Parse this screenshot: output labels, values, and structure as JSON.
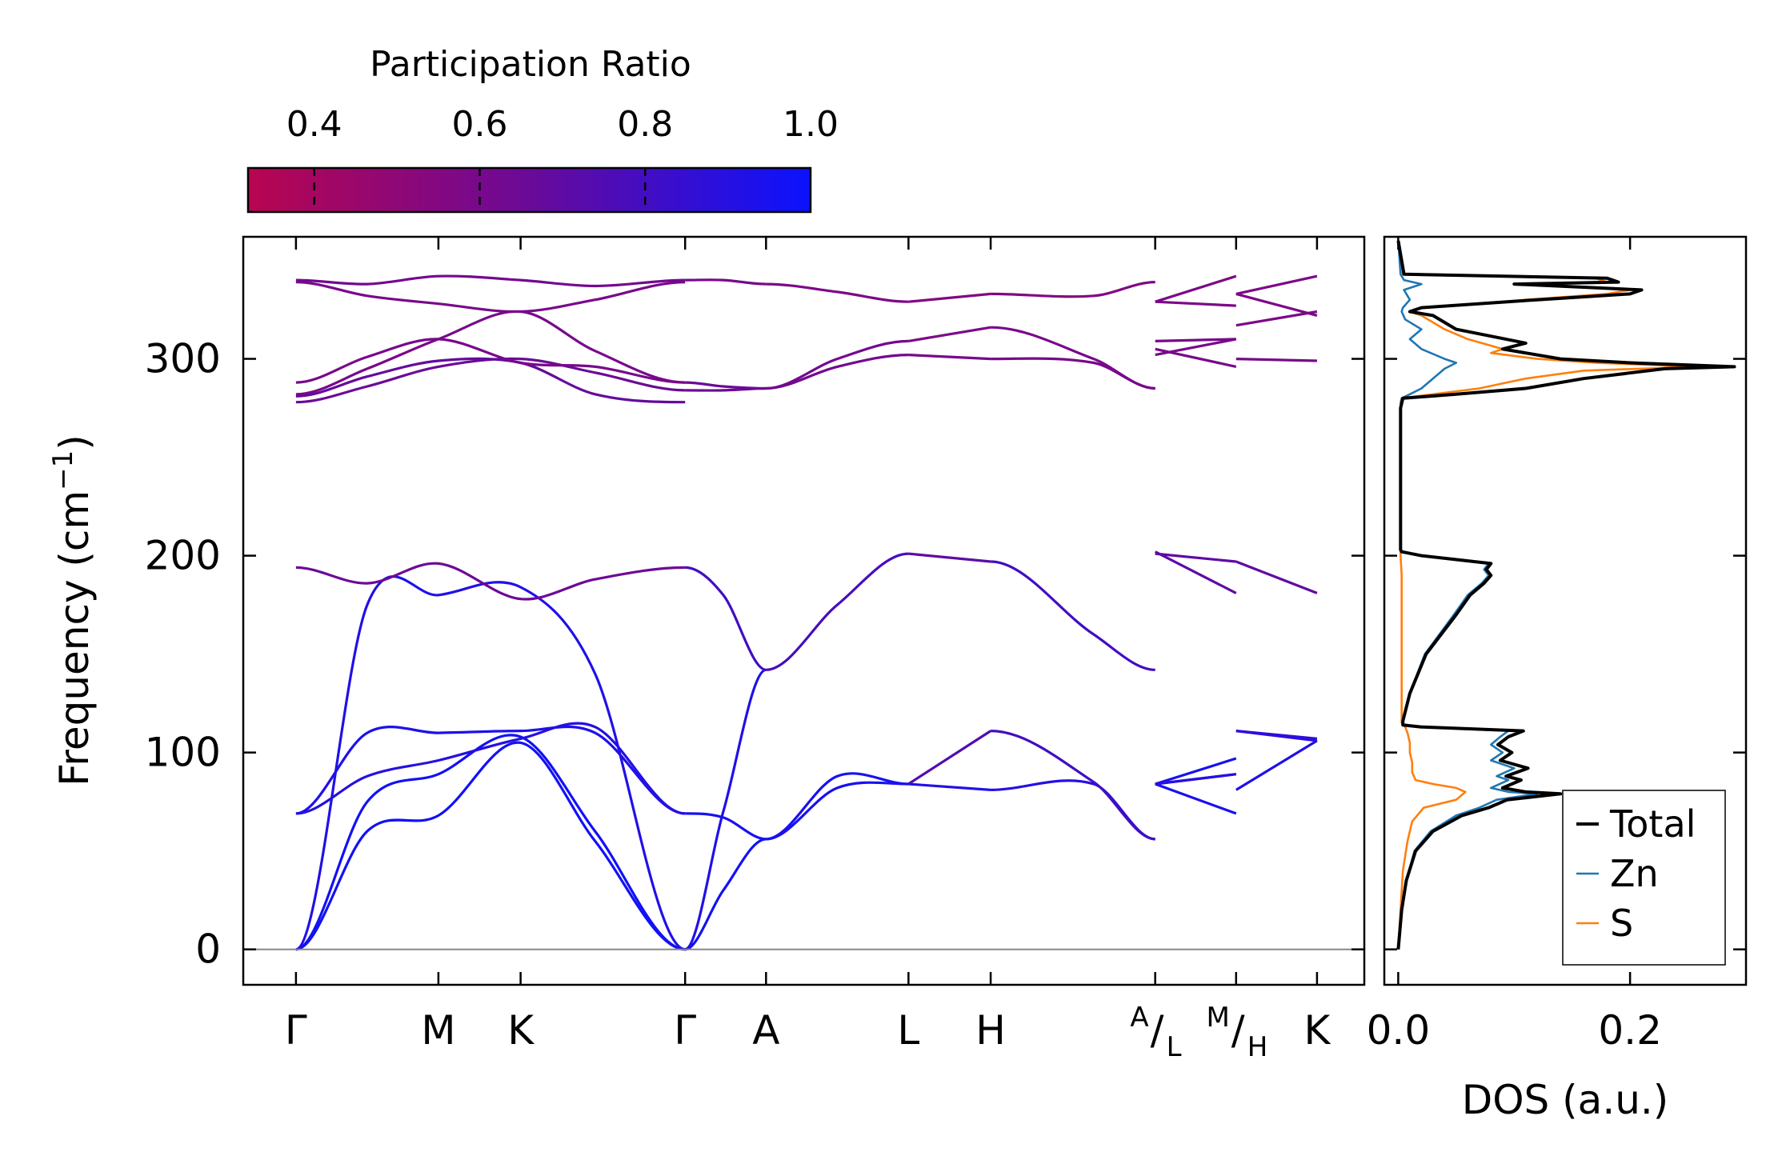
{
  "chart_data": {
    "type": "line",
    "title": "",
    "band_structure": {
      "ylabel": "Frequency (cm",
      "ylabel_sup": "−1",
      "ylabel_close": ")",
      "ylim": [
        -18,
        362
      ],
      "yticks": [
        0,
        100,
        200,
        300
      ],
      "ytick_labels": [
        "0",
        "100",
        "200",
        "300"
      ],
      "kpath": [
        {
          "label": "Γ",
          "x": 0
        },
        {
          "label": "M",
          "x": 1.0
        },
        {
          "label": "K",
          "x": 1.577
        },
        {
          "label": "Γ",
          "x": 2.732
        },
        {
          "label": "A",
          "x": 3.3
        },
        {
          "label": "L",
          "x": 4.3
        },
        {
          "label": "H",
          "x": 4.877
        },
        {
          "label": "",
          "x": 6.032
        },
        {
          "label": "",
          "x": 6.6
        },
        {
          "label": "K",
          "x": 7.168
        }
      ],
      "combined_labels": [
        {
          "sup": "A",
          "base": "L",
          "x": 6.032
        },
        {
          "sup": "M",
          "base": "H",
          "x": 6.6
        }
      ],
      "xlim": [
        -0.37,
        7.5
      ],
      "segments": [
        {
          "x": [
            0,
            0.5,
            1.0,
            1.577,
            2.1,
            2.732
          ],
          "bands": [
            {
              "y": [
                0,
                60,
                68,
                105,
                55,
                0
              ],
              "pr": 0.97
            },
            {
              "y": [
                0,
                75,
                89,
                108,
                60,
                0
              ],
              "pr": 0.97
            },
            {
              "y": [
                69,
                110,
                110,
                111,
                110,
                69
              ],
              "pr": 0.93
            },
            {
              "y": [
                69,
                88,
                96,
                107,
                113,
                69
              ],
              "pr": 0.9
            },
            {
              "y": [
                0,
                175,
                180,
                184,
                140,
                0
              ],
              "pr": 0.92
            },
            {
              "y": [
                194,
                186,
                196,
                178,
                188,
                194
              ],
              "pr": 0.65
            },
            {
              "y": [
                278,
                286,
                296,
                300,
                293,
                284
              ],
              "pr": 0.65
            },
            {
              "y": [
                281,
                291,
                299,
                298,
                282,
                278
              ],
              "pr": 0.68
            },
            {
              "y": [
                282,
                295,
                310,
                324,
                304,
                288
              ],
              "pr": 0.6
            },
            {
              "y": [
                288,
                301,
                310,
                298,
                296,
                288
              ],
              "pr": 0.6
            },
            {
              "y": [
                339,
                332,
                328,
                324,
                330,
                339
              ],
              "pr": 0.6
            },
            {
              "y": [
                340,
                338,
                342,
                340,
                337,
                340
              ],
              "pr": 0.62
            }
          ]
        },
        {
          "x": [
            2.732,
            3.0,
            3.3
          ],
          "bands": [
            {
              "y": [
                0,
                30,
                56
              ],
              "pr": 0.97
            },
            {
              "y": [
                69,
                67,
                56
              ],
              "pr": 0.95
            },
            {
              "y": [
                0,
                70,
                142
              ],
              "pr": 0.92
            },
            {
              "y": [
                194,
                180,
                142
              ],
              "pr": 0.8
            },
            {
              "y": [
                288,
                286,
                285
              ],
              "pr": 0.65
            },
            {
              "y": [
                284,
                284,
                285
              ],
              "pr": 0.65
            },
            {
              "y": [
                340,
                340,
                338
              ],
              "pr": 0.6
            }
          ]
        },
        {
          "x": [
            3.3,
            3.8,
            4.3
          ],
          "bands": [
            {
              "y": [
                56,
                82,
                84
              ],
              "pr": 0.95
            },
            {
              "y": [
                56,
                88,
                84
              ],
              "pr": 0.95
            },
            {
              "y": [
                142,
                175,
                201
              ],
              "pr": 0.78
            },
            {
              "y": [
                285,
                300,
                309
              ],
              "pr": 0.62
            },
            {
              "y": [
                285,
                296,
                302
              ],
              "pr": 0.62
            },
            {
              "y": [
                338,
                334,
                329
              ],
              "pr": 0.58
            }
          ]
        },
        {
          "x": [
            4.3,
            4.877
          ],
          "bands": [
            {
              "y": [
                84,
                81
              ],
              "pr": 0.92
            },
            {
              "y": [
                84,
                111
              ],
              "pr": 0.75
            },
            {
              "y": [
                201,
                197
              ],
              "pr": 0.7
            },
            {
              "y": [
                309,
                316
              ],
              "pr": 0.58
            },
            {
              "y": [
                302,
                300
              ],
              "pr": 0.6
            },
            {
              "y": [
                329,
                333
              ],
              "pr": 0.55
            }
          ]
        },
        {
          "x": [
            4.877,
            5.6,
            6.032
          ],
          "bands": [
            {
              "y": [
                81,
                84,
                56
              ],
              "pr": 0.9
            },
            {
              "y": [
                111,
                85,
                56
              ],
              "pr": 0.8
            },
            {
              "y": [
                197,
                160,
                142
              ],
              "pr": 0.8
            },
            {
              "y": [
                316,
                300,
                285
              ],
              "pr": 0.6
            },
            {
              "y": [
                300,
                298,
                285
              ],
              "pr": 0.6
            },
            {
              "y": [
                333,
                332,
                339
              ],
              "pr": 0.55
            }
          ]
        },
        {
          "x": [
            6.032,
            6.6
          ],
          "bands": [
            {
              "y": [
                84,
                69
              ],
              "pr": 0.95
            },
            {
              "y": [
                84,
                89
              ],
              "pr": 0.95
            },
            {
              "y": [
                84,
                97
              ],
              "pr": 0.95
            },
            {
              "y": [
                84,
                89
              ],
              "pr": 0.9
            },
            {
              "y": [
                202,
                181
              ],
              "pr": 0.7
            },
            {
              "y": [
                201,
                197
              ],
              "pr": 0.7
            },
            {
              "y": [
                305,
                296
              ],
              "pr": 0.6
            },
            {
              "y": [
                309,
                310
              ],
              "pr": 0.6
            },
            {
              "y": [
                302,
                310
              ],
              "pr": 0.6
            },
            {
              "y": [
                329,
                327
              ],
              "pr": 0.58
            },
            {
              "y": [
                329,
                342
              ],
              "pr": 0.58
            }
          ]
        },
        {
          "x": [
            6.6,
            7.168
          ],
          "bands": [
            {
              "y": [
                81,
                106
              ],
              "pr": 0.92
            },
            {
              "y": [
                111,
                106
              ],
              "pr": 0.88
            },
            {
              "y": [
                111,
                107
              ],
              "pr": 0.88
            },
            {
              "y": [
                197,
                181
              ],
              "pr": 0.7
            },
            {
              "y": [
                300,
                299
              ],
              "pr": 0.6
            },
            {
              "y": [
                317,
                324
              ],
              "pr": 0.58
            },
            {
              "y": [
                333,
                322
              ],
              "pr": 0.58
            },
            {
              "y": [
                333,
                342
              ],
              "pr": 0.58
            }
          ]
        }
      ]
    },
    "colorbar": {
      "label": "Participation Ratio",
      "range": [
        0.32,
        1.0
      ],
      "ticks": [
        0.4,
        0.6,
        0.8,
        1.0
      ],
      "tick_labels": [
        "0.4",
        "0.6",
        "0.8",
        "1.0"
      ],
      "color_low": "#b80550",
      "color_mid": "#6a0a98",
      "color_high": "#0a12ff"
    },
    "dos": {
      "xlabel": "DOS (a.u.)",
      "xlim": [
        -0.012,
        0.3
      ],
      "xticks": [
        0.0,
        0.2
      ],
      "xtick_labels": [
        "0.0",
        "0.2"
      ],
      "ylim": [
        -18,
        362
      ],
      "legend": {
        "position": "lower-right",
        "entries": [
          "Total",
          "Zn",
          "S"
        ]
      },
      "series": [
        {
          "name": "Total",
          "color": "#000000",
          "freq": [
            0,
            20,
            35,
            50,
            60,
            68,
            72,
            76,
            79,
            80,
            82,
            86,
            88,
            92,
            96,
            100,
            104,
            108,
            111,
            113,
            114,
            116,
            130,
            150,
            170,
            180,
            186,
            190,
            193,
            196,
            200,
            202,
            203,
            205,
            220,
            250,
            275,
            280,
            282,
            285,
            290,
            295,
            296,
            298,
            300,
            303,
            305,
            308,
            315,
            322,
            324,
            326,
            330,
            333,
            335,
            338,
            339,
            341,
            343,
            360
          ],
          "dos": [
            0,
            0.003,
            0.007,
            0.015,
            0.03,
            0.055,
            0.078,
            0.094,
            0.14,
            0.11,
            0.09,
            0.106,
            0.093,
            0.112,
            0.088,
            0.098,
            0.086,
            0.095,
            0.108,
            0.02,
            0.004,
            0.004,
            0.01,
            0.024,
            0.05,
            0.062,
            0.074,
            0.08,
            0.076,
            0.08,
            0.02,
            0.003,
            0.002,
            0.002,
            0.002,
            0.002,
            0.002,
            0.004,
            0.05,
            0.11,
            0.16,
            0.23,
            0.29,
            0.2,
            0.14,
            0.11,
            0.09,
            0.11,
            0.05,
            0.03,
            0.01,
            0.02,
            0.12,
            0.2,
            0.21,
            0.1,
            0.19,
            0.18,
            0.005,
            0
          ],
          "stroke_width": 4
        },
        {
          "name": "Zn",
          "color": "#1f77b4",
          "freq": [
            0,
            20,
            35,
            50,
            60,
            68,
            72,
            76,
            79,
            80,
            82,
            86,
            88,
            92,
            96,
            100,
            104,
            108,
            111,
            113,
            114,
            116,
            130,
            150,
            170,
            180,
            186,
            190,
            193,
            196,
            200,
            202,
            203,
            205,
            220,
            250,
            275,
            280,
            282,
            285,
            290,
            295,
            298,
            300,
            305,
            310,
            315,
            320,
            324,
            326,
            330,
            335,
            338,
            340,
            343,
            360
          ],
          "dos": [
            0,
            0.003,
            0.007,
            0.014,
            0.028,
            0.05,
            0.07,
            0.085,
            0.12,
            0.095,
            0.08,
            0.095,
            0.085,
            0.1,
            0.08,
            0.09,
            0.08,
            0.088,
            0.095,
            0.018,
            0.004,
            0.004,
            0.01,
            0.023,
            0.048,
            0.06,
            0.072,
            0.078,
            0.074,
            0.078,
            0.018,
            0.003,
            0.002,
            0.002,
            0.002,
            0.002,
            0.002,
            0.003,
            0.01,
            0.02,
            0.03,
            0.04,
            0.05,
            0.04,
            0.02,
            0.01,
            0.02,
            0.006,
            0.003,
            0.004,
            0.01,
            0.005,
            0.02,
            0.005,
            0.002,
            0
          ],
          "stroke_width": 2.6
        },
        {
          "name": "S",
          "color": "#ff7f0e",
          "freq": [
            0,
            20,
            40,
            55,
            65,
            72,
            76,
            80,
            82,
            84,
            86,
            90,
            95,
            100,
            105,
            110,
            113,
            115,
            150,
            190,
            200,
            205,
            250,
            278,
            280,
            282,
            285,
            290,
            294,
            296,
            298,
            300,
            303,
            305,
            310,
            315,
            322,
            324,
            326,
            330,
            333,
            335,
            338,
            339,
            341,
            343,
            360
          ],
          "dos": [
            0,
            0.002,
            0.004,
            0.008,
            0.012,
            0.022,
            0.05,
            0.058,
            0.05,
            0.03,
            0.015,
            0.012,
            0.012,
            0.01,
            0.01,
            0.008,
            0.006,
            0.003,
            0.003,
            0.003,
            0.002,
            0.002,
            0.002,
            0.002,
            0.003,
            0.03,
            0.07,
            0.11,
            0.16,
            0.26,
            0.17,
            0.12,
            0.08,
            0.09,
            0.06,
            0.04,
            0.02,
            0.01,
            0.02,
            0.11,
            0.18,
            0.2,
            0.1,
            0.18,
            0.17,
            0.004,
            0
          ],
          "stroke_width": 2.6
        }
      ]
    }
  }
}
